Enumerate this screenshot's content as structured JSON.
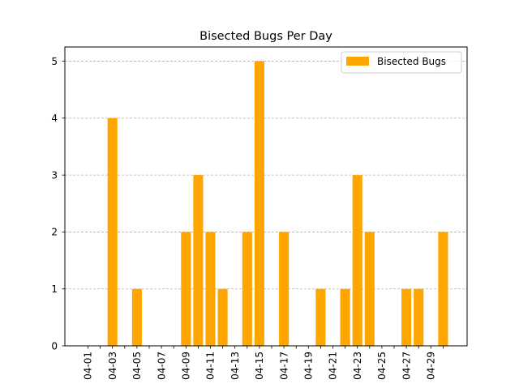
{
  "chart_data": {
    "type": "bar",
    "title": "Bisected Bugs Per Day",
    "xlabel": "",
    "ylabel": "",
    "categories": [
      "04-01",
      "04-02",
      "04-03",
      "04-04",
      "04-05",
      "04-06",
      "04-07",
      "04-08",
      "04-09",
      "04-10",
      "04-11",
      "04-12",
      "04-13",
      "04-14",
      "04-15",
      "04-16",
      "04-17",
      "04-18",
      "04-19",
      "04-20",
      "04-21",
      "04-22",
      "04-23",
      "04-24",
      "04-25",
      "04-26",
      "04-27",
      "04-28",
      "04-29",
      "04-30"
    ],
    "x_tick_labels": [
      "04-01",
      "04-03",
      "04-05",
      "04-07",
      "04-09",
      "04-11",
      "04-13",
      "04-15",
      "04-17",
      "04-19",
      "04-21",
      "04-23",
      "04-25",
      "04-27",
      "04-29"
    ],
    "series": [
      {
        "name": "Bisected Bugs",
        "color": "#ffa500",
        "values": [
          0,
          0,
          4,
          0,
          1,
          0,
          0,
          0,
          2,
          3,
          2,
          1,
          0,
          2,
          5,
          0,
          2,
          0,
          0,
          1,
          0,
          1,
          3,
          2,
          0,
          0,
          1,
          1,
          0,
          2
        ]
      }
    ],
    "ylim": [
      0,
      5.25
    ],
    "y_ticks": [
      0,
      1,
      2,
      3,
      4,
      5
    ],
    "grid": "y-dashed",
    "legend_position": "top-right",
    "x_tick_rotation": "vertical"
  }
}
